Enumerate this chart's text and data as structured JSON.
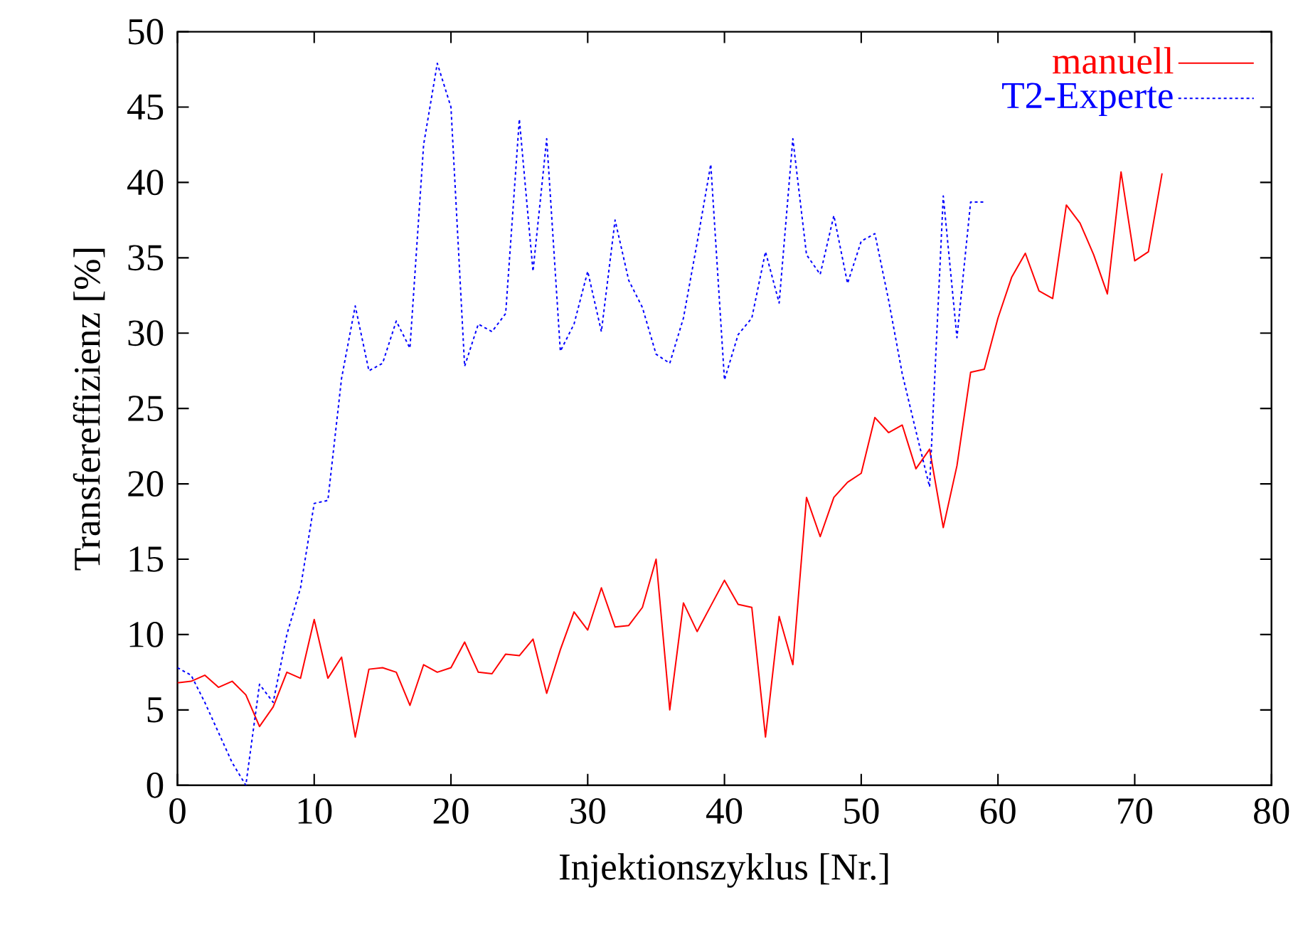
{
  "chart_data": {
    "type": "line",
    "xlabel": "Injektionszyklus [Nr.]",
    "ylabel": "Transfereffizienz [%]",
    "xlim": [
      0,
      80
    ],
    "xticks": [
      0,
      10,
      20,
      30,
      40,
      50,
      60,
      70,
      80
    ],
    "ylim": [
      0,
      50
    ],
    "yticks": [
      0,
      5,
      10,
      15,
      20,
      25,
      30,
      35,
      40,
      45,
      50
    ],
    "grid": false,
    "legend": "top right",
    "marker": "none",
    "series": [
      {
        "name": "manuell",
        "color": "#ff0000",
        "line_style": "solid",
        "x": [
          0,
          1,
          2,
          3,
          4,
          5,
          6,
          7,
          8,
          9,
          10,
          11,
          12,
          13,
          14,
          15,
          16,
          17,
          18,
          19,
          20,
          21,
          22,
          23,
          24,
          25,
          26,
          27,
          28,
          29,
          30,
          31,
          32,
          33,
          34,
          35,
          36,
          37,
          38,
          39,
          40,
          41,
          42,
          43,
          44,
          45,
          46,
          47,
          48,
          49,
          50,
          51,
          52,
          53,
          54,
          55,
          56,
          57,
          58,
          59,
          60,
          61,
          62,
          63,
          64,
          65,
          66,
          67,
          68,
          69,
          70,
          71,
          72
        ],
        "values": [
          6.8,
          6.9,
          7.3,
          6.5,
          6.9,
          6.0,
          3.9,
          5.2,
          7.5,
          7.1,
          11.0,
          7.1,
          8.5,
          3.2,
          7.7,
          7.8,
          7.5,
          5.3,
          8.0,
          7.5,
          7.8,
          9.5,
          7.5,
          7.4,
          8.7,
          8.6,
          9.7,
          6.1,
          9.0,
          11.5,
          10.3,
          13.1,
          10.5,
          10.6,
          11.8,
          15.0,
          5.0,
          12.1,
          10.2,
          11.9,
          13.6,
          12.0,
          11.8,
          3.2,
          11.2,
          8.0,
          19.1,
          16.5,
          19.1,
          20.1,
          20.7,
          24.4,
          23.4,
          23.9,
          21.0,
          22.3,
          17.1,
          21.2,
          27.4,
          27.6,
          31.0,
          33.7,
          35.3,
          32.8,
          32.3,
          38.5,
          37.3,
          35.2,
          32.6,
          40.7,
          34.8,
          35.4,
          40.6
        ]
      },
      {
        "name": "T2-Experte",
        "color": "#0000ff",
        "line_style": "dotted",
        "x": [
          0,
          1,
          2,
          3,
          4,
          5,
          6,
          7,
          8,
          9,
          10,
          11,
          12,
          13,
          14,
          15,
          16,
          17,
          18,
          19,
          20,
          21,
          22,
          23,
          24,
          25,
          26,
          27,
          28,
          29,
          30,
          31,
          32,
          33,
          34,
          35,
          36,
          37,
          38,
          39,
          40,
          41,
          42,
          43,
          44,
          45,
          46,
          47,
          48,
          49,
          50,
          51,
          52,
          53,
          54,
          55,
          56,
          57,
          58,
          59
        ],
        "values": [
          7.8,
          7.3,
          5.5,
          3.5,
          1.5,
          0.0,
          6.7,
          5.5,
          10.0,
          13.1,
          18.7,
          18.9,
          27.0,
          31.8,
          27.5,
          28.0,
          30.8,
          29.0,
          42.5,
          47.9,
          45.0,
          27.8,
          30.6,
          30.1,
          31.3,
          44.2,
          34.1,
          42.9,
          28.8,
          30.6,
          34.1,
          30.1,
          37.5,
          33.5,
          31.7,
          28.6,
          28.0,
          31.0,
          36.0,
          41.2,
          26.9,
          29.9,
          31.0,
          35.4,
          32.0,
          42.9,
          35.2,
          33.9,
          37.8,
          33.3,
          36.1,
          36.6,
          32.2,
          27.3,
          23.5,
          19.8,
          39.1,
          29.7,
          38.7,
          38.7
        ]
      }
    ]
  }
}
